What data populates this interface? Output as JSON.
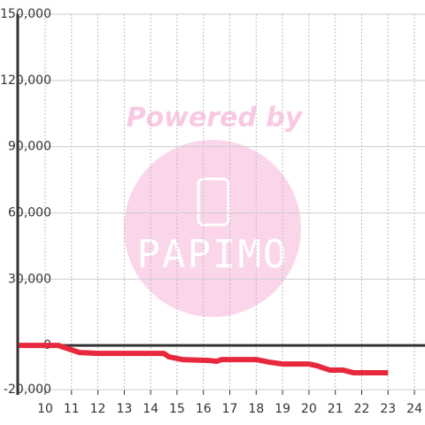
{
  "chart_data": {
    "type": "line",
    "watermark": {
      "top": "Powered by",
      "logo": "PAPIMO"
    },
    "x": [
      9,
      10.5,
      11,
      11.3,
      12,
      14.5,
      14.7,
      15.2,
      16.2,
      16.5,
      16.7,
      18,
      18.5,
      19,
      20,
      20.3,
      20.8,
      21.3,
      21.7,
      23
    ],
    "series": [
      {
        "color": "#e8283c",
        "values": [
          0,
          0,
          -2000,
          -3200,
          -3600,
          -3600,
          -5200,
          -6400,
          -6800,
          -7200,
          -6400,
          -6400,
          -7600,
          -8400,
          -8400,
          -9200,
          -11200,
          -11200,
          -12400,
          -12400
        ]
      }
    ],
    "xlim": [
      8.96,
      24.4
    ],
    "xticks": [
      10,
      11,
      12,
      13,
      14,
      15,
      16,
      17,
      18,
      19,
      20,
      21,
      22,
      23,
      24
    ],
    "ylim": [
      -20000,
      150000
    ],
    "yticks": [
      {
        "value": -20000,
        "label": "-20,000"
      },
      0,
      {
        "value": 30000,
        "label": "30,000"
      },
      {
        "value": 60000,
        "label": "60,000"
      },
      {
        "value": 90000,
        "label": "90,000"
      },
      {
        "value": 120000,
        "label": "120,000"
      },
      {
        "value": 150000,
        "label": "150,000"
      }
    ],
    "grid": true
  }
}
